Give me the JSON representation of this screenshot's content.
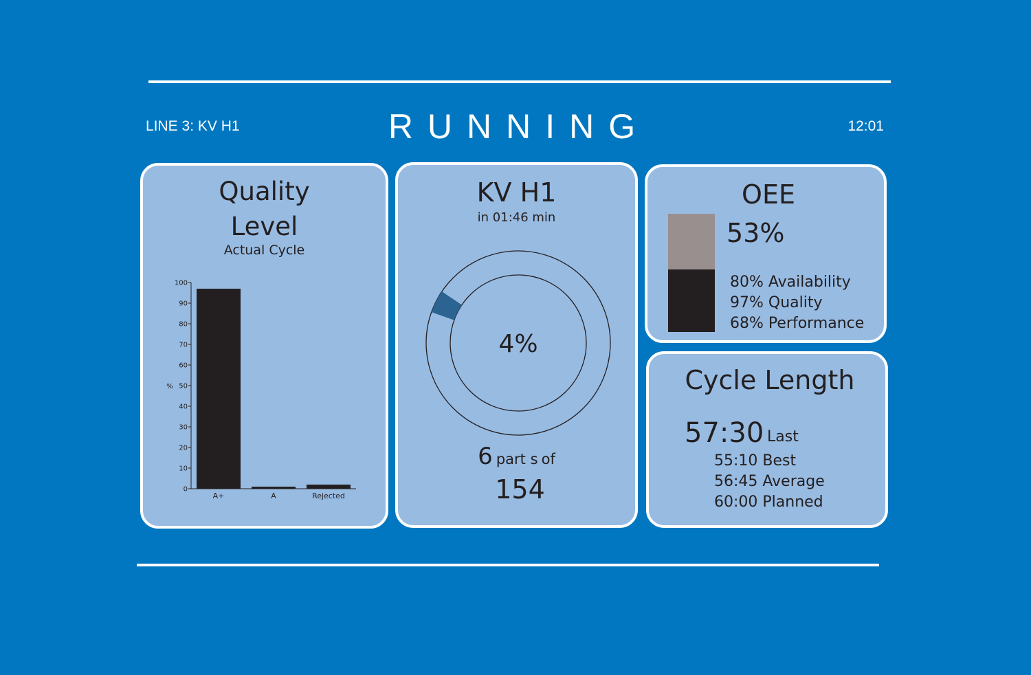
{
  "header": {
    "line_label": "LINE 3: KV H1",
    "status": "RUNNING",
    "time": "12:01"
  },
  "quality": {
    "title_line1": "Quality",
    "title_line2": "Level",
    "subtitle": "Actual Cycle"
  },
  "chart_data": {
    "type": "bar",
    "title": "",
    "xlabel": "",
    "ylabel": "%",
    "categories": [
      "A+",
      "A",
      "Rejected"
    ],
    "values": [
      97,
      1,
      2
    ],
    "ylim": [
      0,
      100
    ],
    "yticks": [
      0,
      10,
      20,
      30,
      40,
      50,
      60,
      70,
      80,
      90,
      100
    ],
    "grid": false,
    "bar_color": "#231f20"
  },
  "production": {
    "title": "KV H1",
    "subtitle": "in 01:46 min",
    "progress_percent_label": "4%",
    "progress_fraction": 0.04,
    "parts_count": "6",
    "parts_text": "part s",
    "of_text": "of",
    "parts_total": "154",
    "progress_color": "#2b6391"
  },
  "oee": {
    "title": "OEE",
    "value": "53%",
    "value_fraction": 0.53,
    "availability": "80% Availability",
    "quality": "97% Quality",
    "performance": "68% Performance",
    "bar_upper_color": "#9a8f8f",
    "bar_lower_color": "#231f20"
  },
  "cycle": {
    "title": "Cycle Length",
    "last_value": "57:30",
    "last_label": "Last",
    "best": "55:10 Best",
    "average": "56:45 Average",
    "planned": "60:00 Planned"
  },
  "colors": {
    "background": "#0077c0",
    "card": "#98bbe2",
    "card_border": "#ffffff",
    "text_dark": "#231f20"
  }
}
